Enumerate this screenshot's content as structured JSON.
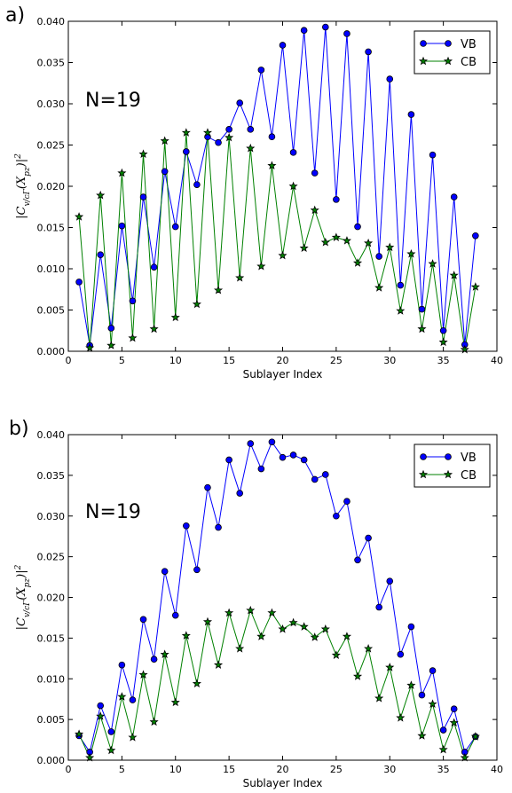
{
  "chart_data": [
    {
      "type": "line",
      "panel_label": "a)",
      "annotation": "N=19",
      "xlabel": "Sublayer Index",
      "ylabel": "|C_v/cΓ(X_pz)|^2",
      "xlim": [
        0,
        40
      ],
      "ylim": [
        0,
        0.04
      ],
      "xticks": [
        "0",
        "5",
        "10",
        "15",
        "20",
        "25",
        "30",
        "35",
        "40"
      ],
      "yticks": [
        "0.000",
        "0.005",
        "0.010",
        "0.015",
        "0.020",
        "0.025",
        "0.030",
        "0.035",
        "0.040"
      ],
      "legend_position": "top-right",
      "grid": false,
      "x": [
        1,
        2,
        3,
        4,
        5,
        6,
        7,
        8,
        9,
        10,
        11,
        12,
        13,
        14,
        15,
        16,
        17,
        18,
        19,
        20,
        21,
        22,
        23,
        24,
        25,
        26,
        27,
        28,
        29,
        30,
        31,
        32,
        33,
        34,
        35,
        36,
        37,
        38
      ],
      "series": [
        {
          "name": "VB",
          "color": "#0000ff",
          "marker": "circle",
          "values": [
            0.0084,
            0.0007,
            0.0117,
            0.0028,
            0.0152,
            0.0061,
            0.0187,
            0.0102,
            0.0218,
            0.0151,
            0.0242,
            0.0202,
            0.026,
            0.0253,
            0.0269,
            0.0301,
            0.0269,
            0.0341,
            0.026,
            0.0371,
            0.0241,
            0.0389,
            0.0216,
            0.0393,
            0.0184,
            0.0385,
            0.0151,
            0.0363,
            0.0115,
            0.033,
            0.008,
            0.0287,
            0.0051,
            0.0238,
            0.0025,
            0.0187,
            0.0008,
            0.014
          ]
        },
        {
          "name": "CB",
          "color": "#008000",
          "marker": "star",
          "values": [
            0.0163,
            0.0004,
            0.0189,
            0.0007,
            0.0216,
            0.0016,
            0.0239,
            0.0027,
            0.0255,
            0.0041,
            0.0265,
            0.0057,
            0.0265,
            0.0074,
            0.0259,
            0.0089,
            0.0246,
            0.0103,
            0.0225,
            0.0116,
            0.02,
            0.0125,
            0.0171,
            0.0132,
            0.0138,
            0.0134,
            0.0107,
            0.0131,
            0.0077,
            0.0126,
            0.0049,
            0.0118,
            0.0027,
            0.0106,
            0.0011,
            0.0092,
            0.0002,
            0.0078
          ]
        }
      ]
    },
    {
      "type": "line",
      "panel_label": "b)",
      "annotation": "N=19",
      "xlabel": "Sublayer Index",
      "ylabel": "|C_v/cΓ(X_pz)|^2",
      "xlim": [
        0,
        40
      ],
      "ylim": [
        0,
        0.04
      ],
      "xticks": [
        "0",
        "5",
        "10",
        "15",
        "20",
        "25",
        "30",
        "35",
        "40"
      ],
      "yticks": [
        "0.000",
        "0.005",
        "0.010",
        "0.015",
        "0.020",
        "0.025",
        "0.030",
        "0.035",
        "0.040"
      ],
      "legend_position": "top-right",
      "grid": false,
      "x": [
        1,
        2,
        3,
        4,
        5,
        6,
        7,
        8,
        9,
        10,
        11,
        12,
        13,
        14,
        15,
        16,
        17,
        18,
        19,
        20,
        21,
        22,
        23,
        24,
        25,
        26,
        27,
        28,
        29,
        30,
        31,
        32,
        33,
        34,
        35,
        36,
        37,
        38
      ],
      "series": [
        {
          "name": "VB",
          "color": "#0000ff",
          "marker": "circle",
          "values": [
            0.003,
            0.001,
            0.0067,
            0.0035,
            0.0117,
            0.0074,
            0.0173,
            0.0124,
            0.0232,
            0.0178,
            0.0288,
            0.0234,
            0.0335,
            0.0286,
            0.0369,
            0.0328,
            0.0389,
            0.0358,
            0.0391,
            0.0372,
            0.0375,
            0.0369,
            0.0345,
            0.0351,
            0.03,
            0.0318,
            0.0246,
            0.0273,
            0.0188,
            0.022,
            0.013,
            0.0164,
            0.008,
            0.011,
            0.0037,
            0.0063,
            0.001,
            0.0029
          ]
        },
        {
          "name": "CB",
          "color": "#008000",
          "marker": "star",
          "values": [
            0.0032,
            0.0003,
            0.0054,
            0.0012,
            0.0078,
            0.0028,
            0.0105,
            0.0047,
            0.013,
            0.0071,
            0.0153,
            0.0094,
            0.017,
            0.0117,
            0.0181,
            0.0137,
            0.0184,
            0.0152,
            0.0181,
            0.0161,
            0.0169,
            0.0164,
            0.0151,
            0.0161,
            0.0129,
            0.0152,
            0.0103,
            0.0137,
            0.0076,
            0.0114,
            0.0052,
            0.0092,
            0.003,
            0.0069,
            0.0013,
            0.0046,
            0.0003,
            0.0029
          ]
        }
      ]
    }
  ]
}
